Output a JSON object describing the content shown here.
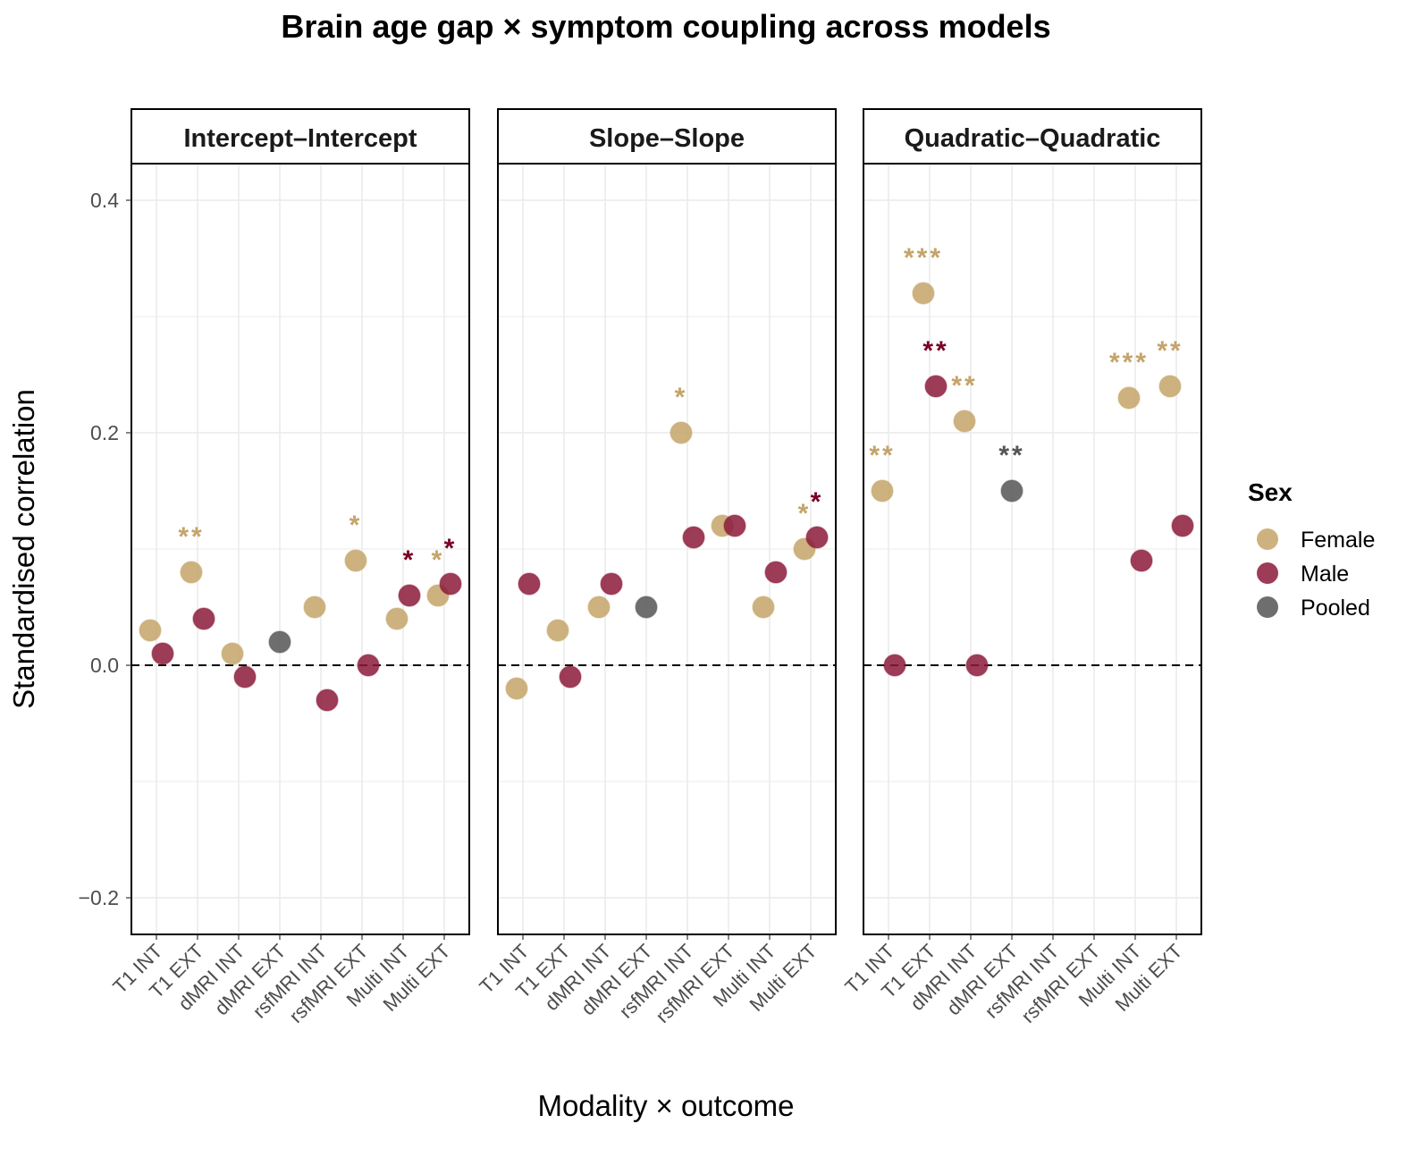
{
  "chart_data": {
    "type": "scatter",
    "title": "Brain age gap × symptom coupling across models",
    "xlabel": "Modality × outcome",
    "ylabel": "Standardised correlation",
    "ylim": [
      -0.2315,
      0.4315
    ],
    "yticks": [
      -0.2,
      0.0,
      0.2,
      0.4
    ],
    "ytick_labels": [
      "−0.2",
      "0.0",
      "0.2",
      "0.4"
    ],
    "grid": true,
    "reference_line": {
      "y": 0,
      "style": "dashed"
    },
    "categories": [
      "T1 INT",
      "T1 EXT",
      "dMRI INT",
      "dMRI EXT",
      "rsfMRI INT",
      "rsfMRI EXT",
      "Multi INT",
      "Multi EXT"
    ],
    "legend": {
      "title": "Sex",
      "position": "right",
      "entries": [
        {
          "name": "Female",
          "color": "#C4A46A"
        },
        {
          "name": "Male",
          "color": "#8B1A3A"
        },
        {
          "name": "Pooled",
          "color": "#555555"
        }
      ]
    },
    "significance_colors": {
      "Female": "#C4A46A",
      "Male": "#7A0024",
      "Pooled": "#555555"
    },
    "panels": [
      {
        "name": "Intercept–Intercept",
        "points": [
          {
            "category": "T1 INT",
            "group": "Female",
            "value": 0.03,
            "sig": ""
          },
          {
            "category": "T1 INT",
            "group": "Male",
            "value": 0.01,
            "sig": ""
          },
          {
            "category": "T1 EXT",
            "group": "Female",
            "value": 0.08,
            "sig": "**"
          },
          {
            "category": "T1 EXT",
            "group": "Male",
            "value": 0.04,
            "sig": ""
          },
          {
            "category": "dMRI INT",
            "group": "Female",
            "value": 0.01,
            "sig": ""
          },
          {
            "category": "dMRI INT",
            "group": "Male",
            "value": -0.01,
            "sig": ""
          },
          {
            "category": "dMRI EXT",
            "group": "Pooled",
            "value": 0.02,
            "sig": ""
          },
          {
            "category": "rsfMRI INT",
            "group": "Female",
            "value": 0.05,
            "sig": ""
          },
          {
            "category": "rsfMRI INT",
            "group": "Male",
            "value": -0.03,
            "sig": ""
          },
          {
            "category": "rsfMRI EXT",
            "group": "Female",
            "value": 0.09,
            "sig": "*"
          },
          {
            "category": "rsfMRI EXT",
            "group": "Male",
            "value": 0.0,
            "sig": ""
          },
          {
            "category": "Multi INT",
            "group": "Female",
            "value": 0.04,
            "sig": ""
          },
          {
            "category": "Multi INT",
            "group": "Male",
            "value": 0.06,
            "sig": "*"
          },
          {
            "category": "Multi EXT",
            "group": "Female",
            "value": 0.06,
            "sig": "*"
          },
          {
            "category": "Multi EXT",
            "group": "Male",
            "value": 0.07,
            "sig": "*"
          }
        ]
      },
      {
        "name": "Slope–Slope",
        "points": [
          {
            "category": "T1 INT",
            "group": "Female",
            "value": -0.02,
            "sig": ""
          },
          {
            "category": "T1 INT",
            "group": "Male",
            "value": 0.07,
            "sig": ""
          },
          {
            "category": "T1 EXT",
            "group": "Female",
            "value": 0.03,
            "sig": ""
          },
          {
            "category": "T1 EXT",
            "group": "Male",
            "value": -0.01,
            "sig": ""
          },
          {
            "category": "dMRI INT",
            "group": "Female",
            "value": 0.05,
            "sig": ""
          },
          {
            "category": "dMRI INT",
            "group": "Male",
            "value": 0.07,
            "sig": ""
          },
          {
            "category": "dMRI EXT",
            "group": "Pooled",
            "value": 0.05,
            "sig": ""
          },
          {
            "category": "rsfMRI INT",
            "group": "Female",
            "value": 0.2,
            "sig": "*"
          },
          {
            "category": "rsfMRI INT",
            "group": "Male",
            "value": 0.11,
            "sig": ""
          },
          {
            "category": "rsfMRI EXT",
            "group": "Female",
            "value": 0.12,
            "sig": ""
          },
          {
            "category": "rsfMRI EXT",
            "group": "Male",
            "value": 0.12,
            "sig": ""
          },
          {
            "category": "Multi INT",
            "group": "Female",
            "value": 0.05,
            "sig": ""
          },
          {
            "category": "Multi INT",
            "group": "Male",
            "value": 0.08,
            "sig": ""
          },
          {
            "category": "Multi EXT",
            "group": "Female",
            "value": 0.1,
            "sig": "*"
          },
          {
            "category": "Multi EXT",
            "group": "Male",
            "value": 0.11,
            "sig": "*"
          }
        ]
      },
      {
        "name": "Quadratic–Quadratic",
        "points": [
          {
            "category": "T1 INT",
            "group": "Female",
            "value": 0.15,
            "sig": "**"
          },
          {
            "category": "T1 INT",
            "group": "Male",
            "value": 0.0,
            "sig": ""
          },
          {
            "category": "T1 EXT",
            "group": "Female",
            "value": 0.32,
            "sig": "***"
          },
          {
            "category": "T1 EXT",
            "group": "Male",
            "value": 0.24,
            "sig": "**"
          },
          {
            "category": "dMRI INT",
            "group": "Female",
            "value": 0.21,
            "sig": "**"
          },
          {
            "category": "dMRI INT",
            "group": "Male",
            "value": 0.0,
            "sig": ""
          },
          {
            "category": "dMRI EXT",
            "group": "Pooled",
            "value": 0.15,
            "sig": "**"
          },
          {
            "category": "Multi INT",
            "group": "Female",
            "value": 0.23,
            "sig": "***"
          },
          {
            "category": "Multi INT",
            "group": "Male",
            "value": 0.09,
            "sig": ""
          },
          {
            "category": "Multi EXT",
            "group": "Female",
            "value": 0.24,
            "sig": "**"
          },
          {
            "category": "Multi EXT",
            "group": "Male",
            "value": 0.12,
            "sig": ""
          }
        ]
      }
    ]
  }
}
